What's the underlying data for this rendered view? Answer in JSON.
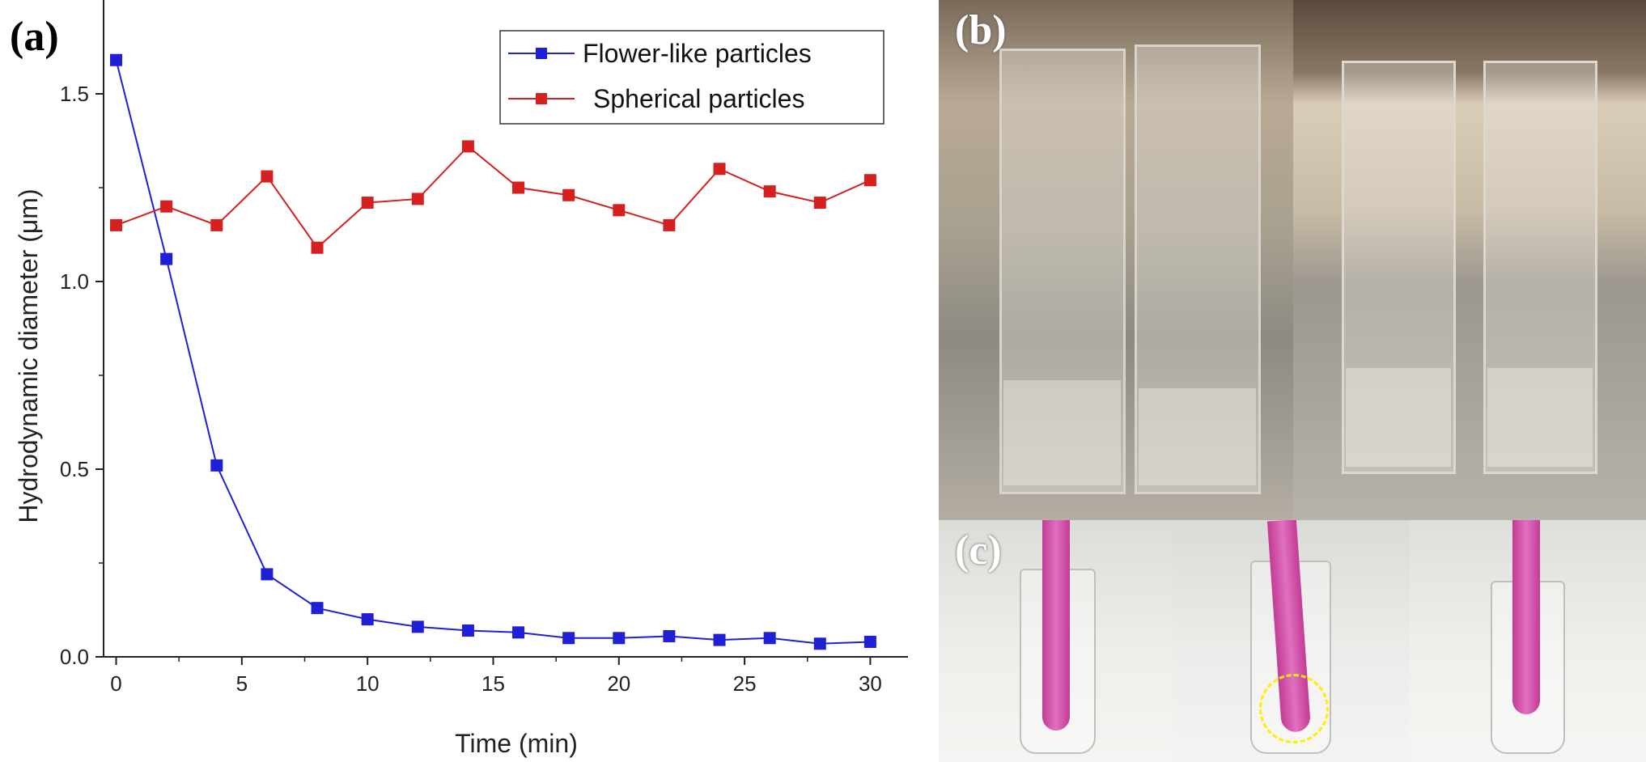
{
  "panels": {
    "a": "(a)",
    "b": "(b)",
    "c": "(c)"
  },
  "chart_data": {
    "type": "line",
    "title": "",
    "xlabel": "Time (min)",
    "ylabel": "Hydrodynamic diameter (μm)",
    "xlim": [
      -0.5,
      31.5
    ],
    "ylim": [
      0,
      1.75
    ],
    "xticks": [
      0,
      5,
      10,
      15,
      20,
      25,
      30
    ],
    "yticks": [
      0.0,
      0.5,
      1.0,
      1.5
    ],
    "ytick_labels": [
      "0.0",
      "0.5",
      "1.0",
      "1.5"
    ],
    "legend_position": "top-right",
    "x": [
      0,
      2,
      4,
      6,
      8,
      10,
      12,
      14,
      16,
      18,
      20,
      22,
      24,
      26,
      28,
      30
    ],
    "series": [
      {
        "name": "Flower-like particles",
        "color": "#1f1fd6",
        "marker": "square",
        "values": [
          1.59,
          1.06,
          0.51,
          0.22,
          0.13,
          0.1,
          0.08,
          0.07,
          0.065,
          0.05,
          0.05,
          0.055,
          0.045,
          0.05,
          0.035,
          0.04
        ]
      },
      {
        "name": "Spherical particles",
        "color": "#d61f1f",
        "marker": "square",
        "values": [
          1.15,
          1.2,
          1.15,
          1.28,
          1.09,
          1.21,
          1.22,
          1.36,
          1.25,
          1.23,
          1.19,
          1.15,
          1.3,
          1.24,
          1.21,
          1.27
        ]
      }
    ]
  }
}
